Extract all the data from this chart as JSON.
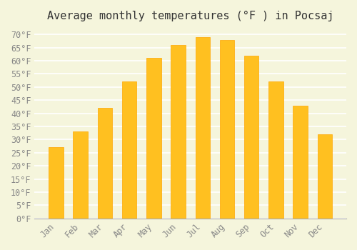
{
  "title": "Average monthly temperatures (°F ) in Pocsaj",
  "months": [
    "Jan",
    "Feb",
    "Mar",
    "Apr",
    "May",
    "Jun",
    "Jul",
    "Aug",
    "Sep",
    "Oct",
    "Nov",
    "Dec"
  ],
  "values": [
    27,
    33,
    42,
    52,
    61,
    66,
    69,
    68,
    62,
    52,
    43,
    32
  ],
  "bar_color": "#FFC020",
  "bar_edge_color": "#FFA500",
  "background_color": "#F5F5DC",
  "grid_color": "#FFFFFF",
  "text_color": "#888888",
  "ylim": [
    0,
    72
  ],
  "yticks": [
    0,
    5,
    10,
    15,
    20,
    25,
    30,
    35,
    40,
    45,
    50,
    55,
    60,
    65,
    70
  ],
  "title_fontsize": 11,
  "tick_fontsize": 8.5,
  "font_family": "monospace"
}
